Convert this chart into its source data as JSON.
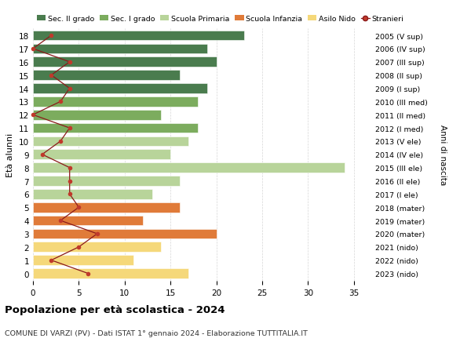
{
  "ages": [
    18,
    17,
    16,
    15,
    14,
    13,
    12,
    11,
    10,
    9,
    8,
    7,
    6,
    5,
    4,
    3,
    2,
    1,
    0
  ],
  "right_labels": [
    "2005 (V sup)",
    "2006 (IV sup)",
    "2007 (III sup)",
    "2008 (II sup)",
    "2009 (I sup)",
    "2010 (III med)",
    "2011 (II med)",
    "2012 (I med)",
    "2013 (V ele)",
    "2014 (IV ele)",
    "2015 (III ele)",
    "2016 (II ele)",
    "2017 (I ele)",
    "2018 (mater)",
    "2019 (mater)",
    "2020 (mater)",
    "2021 (nido)",
    "2022 (nido)",
    "2023 (nido)"
  ],
  "bar_values": [
    23,
    19,
    20,
    16,
    19,
    18,
    14,
    18,
    17,
    15,
    34,
    16,
    13,
    16,
    12,
    20,
    14,
    11,
    17
  ],
  "bar_colors": [
    "#4a7c4e",
    "#4a7c4e",
    "#4a7c4e",
    "#4a7c4e",
    "#4a7c4e",
    "#7cac5e",
    "#7cac5e",
    "#7cac5e",
    "#b8d49a",
    "#b8d49a",
    "#b8d49a",
    "#b8d49a",
    "#b8d49a",
    "#e07b39",
    "#e07b39",
    "#e07b39",
    "#f5d87a",
    "#f5d87a",
    "#f5d87a"
  ],
  "stranieri_values": [
    2,
    0,
    4,
    2,
    4,
    3,
    0,
    4,
    3,
    1,
    4,
    4,
    4,
    5,
    3,
    7,
    5,
    2,
    6
  ],
  "title": "Popolazione per età scolastica - 2024",
  "subtitle": "COMUNE DI VARZI (PV) - Dati ISTAT 1° gennaio 2024 - Elaborazione TUTTITALIA.IT",
  "ylabel": "Età alunni",
  "right_ylabel": "Anni di nascita",
  "xlim": [
    0,
    37
  ],
  "xticks": [
    0,
    5,
    10,
    15,
    20,
    25,
    30,
    35
  ],
  "legend_labels": [
    "Sec. II grado",
    "Sec. I grado",
    "Scuola Primaria",
    "Scuola Infanzia",
    "Asilo Nido",
    "Stranieri"
  ],
  "legend_colors": [
    "#4a7c4e",
    "#7cac5e",
    "#b8d49a",
    "#e07b39",
    "#f5d87a",
    "#c0392b"
  ],
  "background_color": "#ffffff",
  "bar_height": 0.75,
  "stranieri_line_color": "#8b1a1a",
  "stranieri_dot_color": "#c0392b"
}
